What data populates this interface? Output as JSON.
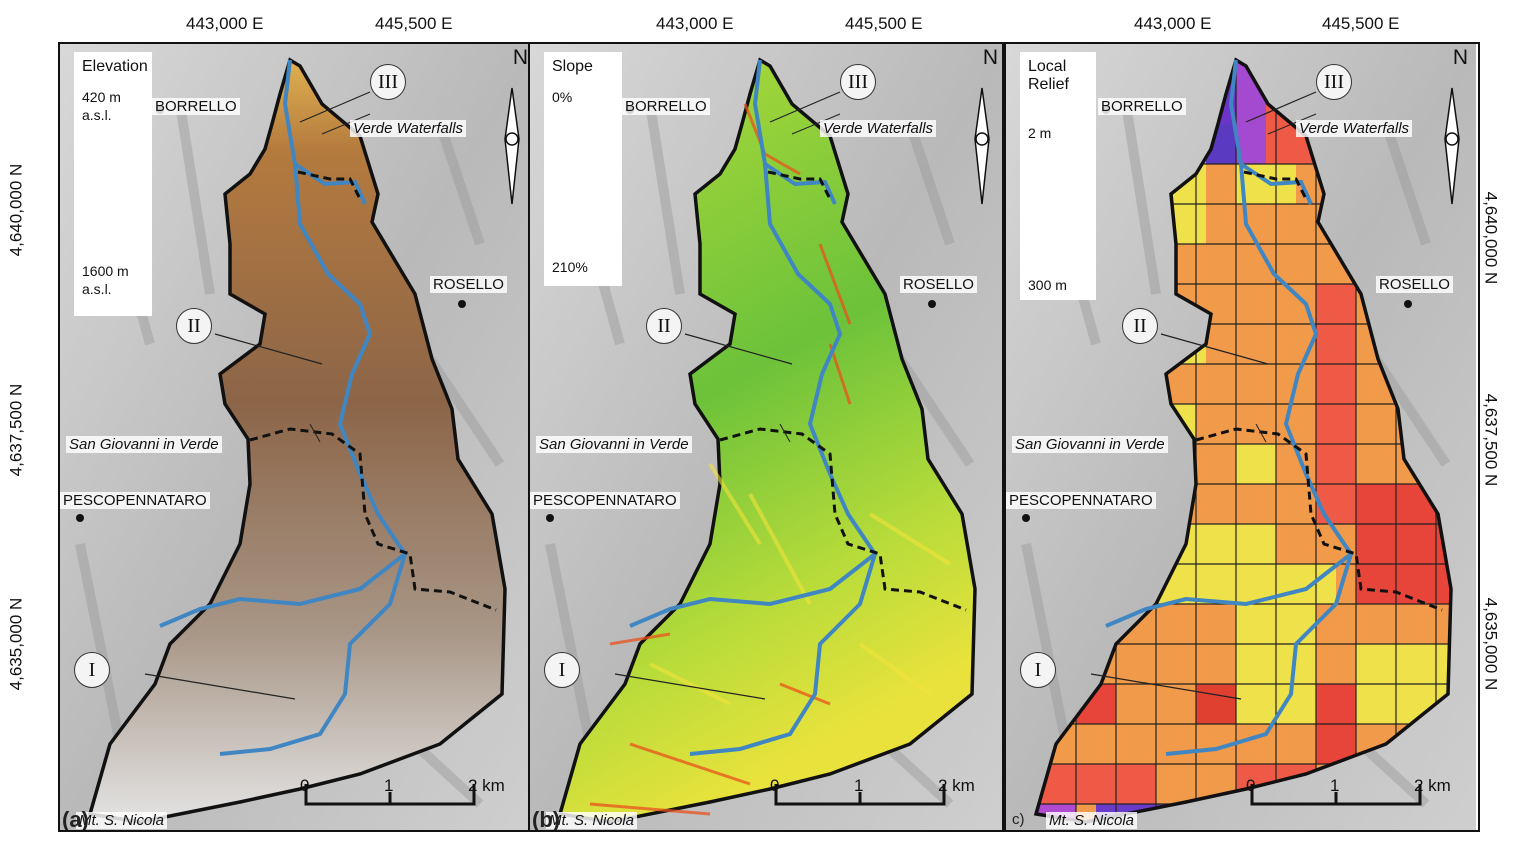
{
  "coords": {
    "easting": [
      "443,000 E",
      "445,500 E"
    ],
    "northing": [
      "4,640,000 N",
      "4,637,500 N",
      "4,635,000 N"
    ]
  },
  "panels": [
    {
      "tag": "(a)",
      "legend": {
        "title": "Elevation",
        "min": "420 m a.s.l.",
        "max": "1600 m a.s.l."
      }
    },
    {
      "tag": "(b)",
      "legend": {
        "title": "Slope",
        "min": "0%",
        "max": "210%"
      }
    },
    {
      "tag": "c)",
      "legend": {
        "title": "Local Relief",
        "min": "2 m",
        "max": "300 m"
      }
    }
  ],
  "places": {
    "borrello": "BORRELLO",
    "rosello": "ROSELLO",
    "pescopennataro": "PESCOPENNATARO",
    "verde_waterfalls": "Verde Waterfalls",
    "san_giovanni": "San Giovanni in Verde",
    "mt_nicola": "Mt. S. Nicola"
  },
  "zones": [
    "I",
    "II",
    "III"
  ],
  "north": "N",
  "scale": {
    "labels": [
      "0",
      "1",
      "2 km"
    ]
  },
  "colors": {
    "elevation_ramp": [
      "#2e9b1d",
      "#d2c21a",
      "#7a4a1f",
      "#cfcfcf",
      "#ffffff"
    ],
    "slope_ramp": [
      "#2fb02f",
      "#a9d62c",
      "#f4ef3a",
      "#f08a1c",
      "#e0251a"
    ],
    "relief_ramp": [
      "#f6e84a",
      "#f09a4a",
      "#e8453a",
      "#9a3ad0",
      "#4a2ab0"
    ],
    "river": "#3f86c2",
    "boundary": "#111111"
  }
}
